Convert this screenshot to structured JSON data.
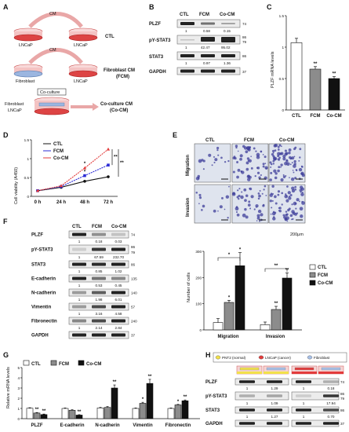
{
  "panels": {
    "A": "A",
    "B": "B",
    "C": "C",
    "D": "D",
    "E": "E",
    "F": "F",
    "G": "G",
    "H": "H"
  },
  "panelA": {
    "cm_label": "CM",
    "top_left": "LNCaP",
    "top_right": "LNCaP",
    "top_group": "CTL",
    "mid_left": "Fibroblast",
    "mid_right": "LNCaP",
    "mid_group": "Fibroblast CM",
    "mid_group2": "(FCM)",
    "cocul_title": "Co-culture",
    "cocul_fib": "Fibroblast",
    "cocul_lncap": "LNCaP",
    "cocul_group": "Co-culture CM",
    "cocul_group2": "(Co-CM)"
  },
  "panelB": {
    "cols": [
      "CTL",
      "FCM",
      "Co-CM"
    ],
    "rows": [
      {
        "name": "PLZF",
        "mw": "74",
        "values": [
          "1",
          "0.58",
          "0.15"
        ]
      },
      {
        "name": "pY-STAT3",
        "mw": "86",
        "mw2": "79",
        "values": [
          "1",
          "42.47",
          "95.02"
        ]
      },
      {
        "name": "STAT3",
        "mw": "86",
        "values": [
          "1",
          "0.97",
          "1.36"
        ]
      },
      {
        "name": "GAPDH",
        "mw": "37"
      }
    ]
  },
  "panelC": {
    "ylabel": "PLZF mRNA levels",
    "ticks": [
      "0",
      "0.5",
      "1",
      "1.5"
    ],
    "chart_data": {
      "type": "bar",
      "categories": [
        "CTL",
        "FCM",
        "Co-CM"
      ],
      "values": [
        1.07,
        0.65,
        0.5
      ],
      "errors": [
        0.07,
        0.04,
        0.03
      ],
      "ylim": [
        0,
        1.5
      ],
      "sig": [
        "",
        "**",
        "**"
      ]
    }
  },
  "panelD": {
    "ylabel": "Cell viability (A450)",
    "xticks": [
      "0 h",
      "24 h",
      "48 h",
      "72 h"
    ],
    "yticks": [
      "0",
      "0.5",
      "1",
      "1.5"
    ],
    "chart_data": {
      "type": "line",
      "x": [
        "0 h",
        "24 h",
        "48 h",
        "72 h"
      ],
      "ylim": [
        0,
        1.5
      ],
      "series": [
        {
          "name": "CTL",
          "values": [
            0.15,
            0.24,
            0.4,
            0.52
          ],
          "color": "#111111"
        },
        {
          "name": "FCM",
          "values": [
            0.15,
            0.26,
            0.55,
            0.83
          ],
          "color": "#2b2bd6"
        },
        {
          "name": "Co-CM",
          "values": [
            0.15,
            0.28,
            0.75,
            1.25
          ],
          "color": "#e23b3b"
        }
      ],
      "sig": [
        "*",
        "*",
        "**",
        "**"
      ]
    }
  },
  "panelE": {
    "cols": [
      "CTL",
      "FCM",
      "Co-CM"
    ],
    "rows": [
      "Migration",
      "Invasion"
    ],
    "scale": "200μm",
    "ylabel": "Number of cells",
    "yticks": [
      "0",
      "100",
      "200",
      "300"
    ],
    "chart_data": {
      "type": "bar",
      "categories": [
        "Migration",
        "Invasion"
      ],
      "ylim": [
        0,
        300
      ],
      "series": [
        {
          "name": "CTL",
          "values": [
            28,
            20
          ],
          "errors": [
            15,
            10
          ],
          "color": "#ffffff"
        },
        {
          "name": "FCM",
          "values": [
            105,
            78
          ],
          "errors": [
            8,
            12
          ],
          "color": "#8c8c8c"
        },
        {
          "name": "Co-CM",
          "values": [
            245,
            198
          ],
          "errors": [
            50,
            20
          ],
          "color": "#111111"
        }
      ],
      "sig": [
        "*",
        "*",
        "*",
        "*",
        "**",
        "**"
      ]
    }
  },
  "panelF": {
    "cols": [
      "CTL",
      "FCM",
      "Co-CM"
    ],
    "rows": [
      {
        "name": "PLZF",
        "mw": "74",
        "values": [
          "1",
          "0.18",
          "0.03"
        ]
      },
      {
        "name": "pY-STAT3",
        "mw": "86",
        "mw2": "79",
        "values": [
          "1",
          "67.59",
          "232.70"
        ]
      },
      {
        "name": "STAT3",
        "mw": "86",
        "values": [
          "1",
          "0.85",
          "1.02"
        ]
      },
      {
        "name": "E-cadherin",
        "mw": "135",
        "values": [
          "1",
          "0.53",
          "0.45"
        ]
      },
      {
        "name": "N-cadherin",
        "mw": "140",
        "values": [
          "1",
          "1.98",
          "6.01"
        ]
      },
      {
        "name": "Vimentin",
        "mw": "57",
        "values": [
          "1",
          "3.16",
          "4.58"
        ]
      },
      {
        "name": "Fibronectin",
        "mw": "240",
        "values": [
          "1",
          "2.14",
          "2.84"
        ]
      },
      {
        "name": "GAPDH",
        "mw": "37"
      }
    ]
  },
  "panelG": {
    "ylabel": "Relative mRNA levels",
    "yticks": [
      "0",
      "1",
      "2",
      "3",
      "4",
      "5"
    ],
    "chart_data": {
      "type": "bar",
      "categories": [
        "PLZF",
        "E-cadherin",
        "N-cadherin",
        "Vimentin",
        "Fibronectin"
      ],
      "ylim": [
        0,
        5
      ],
      "series": [
        {
          "name": "CTL",
          "values": [
            1.02,
            1.0,
            1.05,
            1.0,
            1.0
          ],
          "errors": [
            0.05,
            0.05,
            0.05,
            0.05,
            0.05
          ],
          "color": "#ffffff"
        },
        {
          "name": "FCM",
          "values": [
            0.55,
            0.82,
            1.1,
            1.5,
            1.35
          ],
          "errors": [
            0.05,
            0.05,
            0.08,
            0.1,
            0.05
          ],
          "color": "#8c8c8c"
        },
        {
          "name": "Co-CM",
          "values": [
            0.4,
            0.35,
            3.0,
            3.45,
            1.75
          ],
          "errors": [
            0.05,
            0.04,
            0.3,
            0.4,
            0.08
          ],
          "color": "#111111"
        }
      ]
    }
  },
  "panelH": {
    "legend": [
      {
        "label": "PNT2 (normal)",
        "color": "#f2e14a"
      },
      {
        "label": "LNCaP (cancer)",
        "color": "#e23b3b"
      },
      {
        "label": "Fibroblast",
        "color": "#a7c0e8"
      }
    ],
    "rows": [
      {
        "name": "PLZF",
        "mw": "74",
        "left": [
          "1",
          "1.29"
        ],
        "right": [
          "1",
          "0.18"
        ]
      },
      {
        "name": "pY-STAT3",
        "mw": "86",
        "mw2": "79",
        "left": [
          "1",
          "1.09"
        ],
        "right": [
          "1",
          "17.94"
        ]
      },
      {
        "name": "STAT3",
        "mw": "86",
        "left": [
          "1",
          "1.27"
        ],
        "right": [
          "1",
          "0.70"
        ]
      },
      {
        "name": "GAPDH",
        "mw": "37"
      }
    ]
  }
}
